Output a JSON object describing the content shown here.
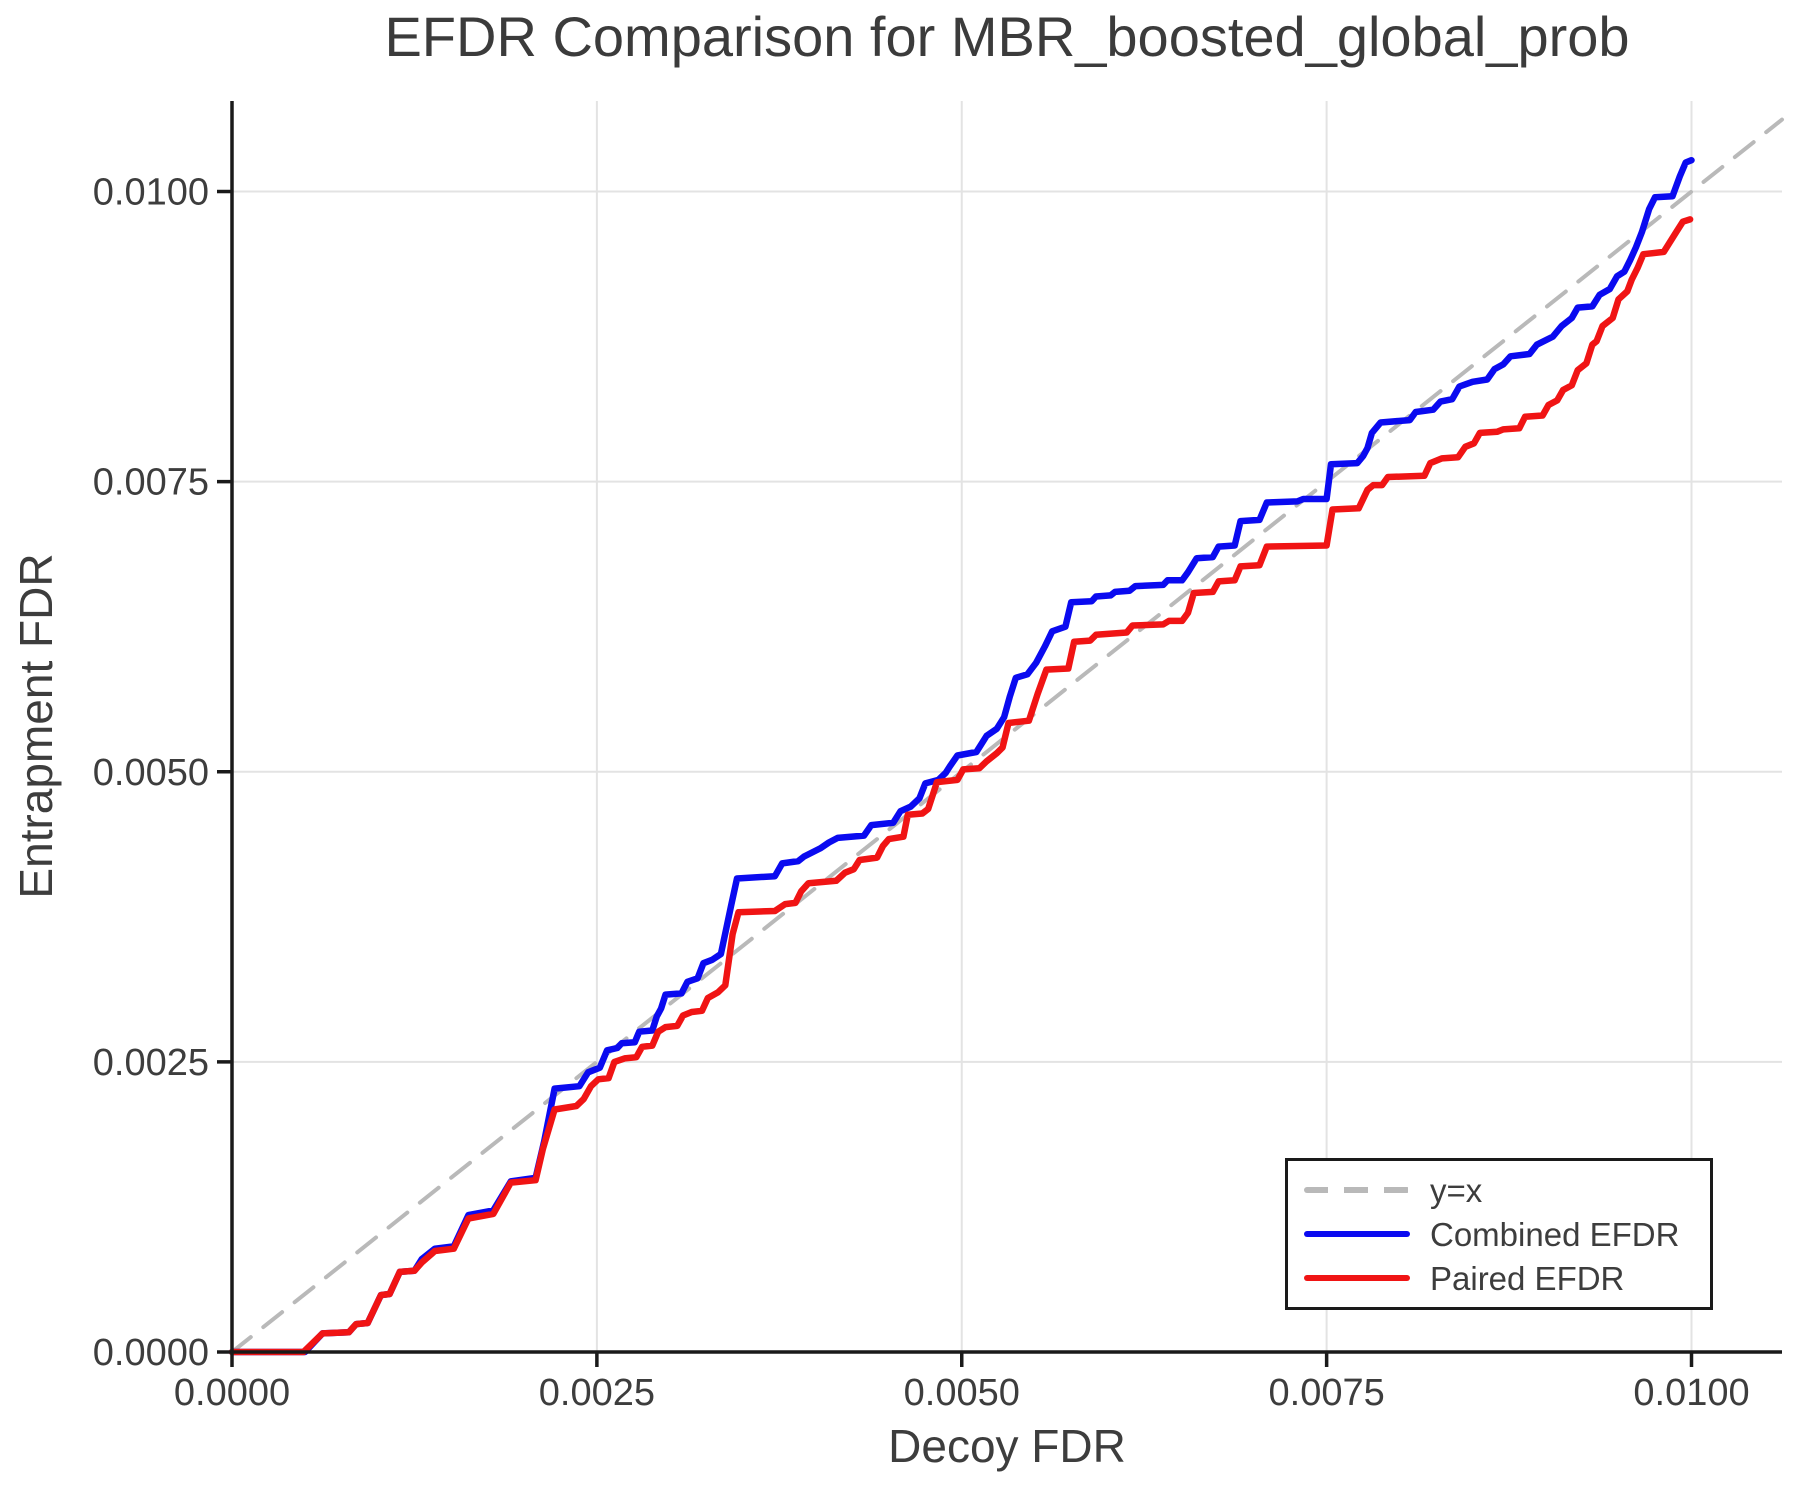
{
  "title": "EFDR Comparison for MBR_boosted_global_prob",
  "x_axis": {
    "label": "Decoy FDR",
    "tick_labels": [
      "0.0000",
      "0.0025",
      "0.0050",
      "0.0075",
      "0.0100"
    ],
    "tick_values": [
      0,
      0.0025,
      0.005,
      0.0075,
      0.01
    ],
    "range": [
      0,
      0.01062
    ]
  },
  "y_axis": {
    "label": "Entrapment FDR",
    "tick_labels": [
      "0.0000",
      "0.0025",
      "0.0050",
      "0.0075",
      "0.0100"
    ],
    "tick_values": [
      0,
      0.0025,
      0.005,
      0.0075,
      0.01
    ],
    "range": [
      0,
      0.01078
    ]
  },
  "legend": {
    "location": "lower right",
    "items": [
      {
        "label": "y=x",
        "color": "#b9b9b9",
        "dashed": true
      },
      {
        "label": "Combined EFDR",
        "color": "#0a0af0",
        "dashed": false
      },
      {
        "label": "Paired EFDR",
        "color": "#f01414",
        "dashed": false
      }
    ]
  },
  "colors": {
    "background": "#ffffff",
    "grid": "#e3e3e3",
    "spine": "#1a1a1a",
    "text": "#3d3d3d",
    "identity_line": "#b9b9b9",
    "combined_efdr": "#0a0af0",
    "paired_efdr": "#f01414"
  },
  "chart_data": {
    "type": "line",
    "title": "EFDR Comparison for MBR_boosted_global_prob",
    "xlabel": "Decoy FDR",
    "ylabel": "Entrapment FDR",
    "xlim": [
      0,
      0.01062
    ],
    "ylim": [
      0,
      0.01078
    ],
    "grid": true,
    "legend_position": "lower right",
    "series": [
      {
        "name": "y=x",
        "color": "#b9b9b9",
        "style": "dashed",
        "width": 4,
        "points": [
          [
            0,
            0
          ],
          [
            0.01062,
            0.01062
          ]
        ]
      },
      {
        "name": "Combined EFDR",
        "color": "#0a0af0",
        "style": "solid",
        "width": 6.5,
        "points": [
          [
            0,
            0
          ],
          [
            0.0005,
            0
          ],
          [
            0.00062,
            0.00016
          ],
          [
            0.0008,
            0.00017
          ],
          [
            0.00085,
            0.00024
          ],
          [
            0.00093,
            0.00025
          ],
          [
            0.00102,
            0.00049
          ],
          [
            0.00108,
            0.0005
          ],
          [
            0.00115,
            0.00069
          ],
          [
            0.00125,
            0.0007
          ],
          [
            0.0013,
            0.0008
          ],
          [
            0.00139,
            0.00089
          ],
          [
            0.00152,
            0.00091
          ],
          [
            0.00162,
            0.00118
          ],
          [
            0.00179,
            0.00122
          ],
          [
            0.00191,
            0.00147
          ],
          [
            0.00208,
            0.0015
          ],
          [
            0.00214,
            0.00182
          ],
          [
            0.00221,
            0.00227
          ],
          [
            0.00238,
            0.00229
          ],
          [
            0.00244,
            0.00241
          ],
          [
            0.00252,
            0.00245
          ],
          [
            0.00257,
            0.0026
          ],
          [
            0.00264,
            0.00262
          ],
          [
            0.00267,
            0.00266
          ],
          [
            0.00276,
            0.00267
          ],
          [
            0.00279,
            0.00276
          ],
          [
            0.00288,
            0.00277
          ],
          [
            0.00291,
            0.00289
          ],
          [
            0.00294,
            0.00296
          ],
          [
            0.00297,
            0.00308
          ],
          [
            0.00308,
            0.00309
          ],
          [
            0.00312,
            0.00319
          ],
          [
            0.00319,
            0.00322
          ],
          [
            0.00323,
            0.00335
          ],
          [
            0.00329,
            0.00338
          ],
          [
            0.00335,
            0.00343
          ],
          [
            0.00342,
            0.00385
          ],
          [
            0.00346,
            0.00408
          ],
          [
            0.00372,
            0.0041
          ],
          [
            0.00377,
            0.00421
          ],
          [
            0.00388,
            0.00423
          ],
          [
            0.00392,
            0.00427
          ],
          [
            0.00403,
            0.00434
          ],
          [
            0.00409,
            0.00439
          ],
          [
            0.00415,
            0.00443
          ],
          [
            0.00433,
            0.00445
          ],
          [
            0.00438,
            0.00454
          ],
          [
            0.00453,
            0.00456
          ],
          [
            0.00458,
            0.00466
          ],
          [
            0.00465,
            0.0047
          ],
          [
            0.00471,
            0.00477
          ],
          [
            0.00475,
            0.0049
          ],
          [
            0.00484,
            0.00493
          ],
          [
            0.00489,
            0.00499
          ],
          [
            0.00492,
            0.00505
          ],
          [
            0.00497,
            0.00514
          ],
          [
            0.0051,
            0.00517
          ],
          [
            0.00517,
            0.00531
          ],
          [
            0.00524,
            0.00537
          ],
          [
            0.00529,
            0.00547
          ],
          [
            0.00533,
            0.00565
          ],
          [
            0.00537,
            0.00581
          ],
          [
            0.00545,
            0.00584
          ],
          [
            0.00551,
            0.00594
          ],
          [
            0.00557,
            0.00608
          ],
          [
            0.00562,
            0.00621
          ],
          [
            0.00571,
            0.00625
          ],
          [
            0.00575,
            0.00646
          ],
          [
            0.00589,
            0.00647
          ],
          [
            0.00592,
            0.00651
          ],
          [
            0.00602,
            0.00652
          ],
          [
            0.00605,
            0.00655
          ],
          [
            0.00615,
            0.00656
          ],
          [
            0.00619,
            0.0066
          ],
          [
            0.00638,
            0.00661
          ],
          [
            0.00641,
            0.00665
          ],
          [
            0.00651,
            0.00665
          ],
          [
            0.00655,
            0.00672
          ],
          [
            0.00661,
            0.00684
          ],
          [
            0.00672,
            0.00685
          ],
          [
            0.00676,
            0.00694
          ],
          [
            0.00687,
            0.00695
          ],
          [
            0.00691,
            0.00716
          ],
          [
            0.00704,
            0.00717
          ],
          [
            0.00709,
            0.00732
          ],
          [
            0.0073,
            0.00733
          ],
          [
            0.00734,
            0.00735
          ],
          [
            0.0075,
            0.00735
          ],
          [
            0.00753,
            0.00765
          ],
          [
            0.00771,
            0.00766
          ],
          [
            0.00775,
            0.00772
          ],
          [
            0.00778,
            0.00779
          ],
          [
            0.00781,
            0.00792
          ],
          [
            0.00787,
            0.00801
          ],
          [
            0.00807,
            0.00803
          ],
          [
            0.00811,
            0.0081
          ],
          [
            0.00823,
            0.00812
          ],
          [
            0.00828,
            0.00819
          ],
          [
            0.00836,
            0.00821
          ],
          [
            0.00841,
            0.00832
          ],
          [
            0.0085,
            0.00836
          ],
          [
            0.0086,
            0.00838
          ],
          [
            0.00865,
            0.00847
          ],
          [
            0.00871,
            0.00851
          ],
          [
            0.00876,
            0.00858
          ],
          [
            0.00889,
            0.0086
          ],
          [
            0.00894,
            0.00868
          ],
          [
            0.00905,
            0.00875
          ],
          [
            0.00911,
            0.00884
          ],
          [
            0.00918,
            0.00891
          ],
          [
            0.00922,
            0.009
          ],
          [
            0.00932,
            0.00901
          ],
          [
            0.00937,
            0.00911
          ],
          [
            0.00944,
            0.00916
          ],
          [
            0.00949,
            0.00927
          ],
          [
            0.00954,
            0.00931
          ],
          [
            0.00958,
            0.00941
          ],
          [
            0.00962,
            0.00952
          ],
          [
            0.00966,
            0.00965
          ],
          [
            0.00971,
            0.00985
          ],
          [
            0.00975,
            0.00995
          ],
          [
            0.00987,
            0.00996
          ],
          [
            0.00992,
            0.01013
          ],
          [
            0.00996,
            0.01025
          ],
          [
            0.01,
            0.01027
          ]
        ]
      },
      {
        "name": "Paired EFDR",
        "color": "#f01414",
        "style": "solid",
        "width": 6.5,
        "points": [
          [
            0,
            0
          ],
          [
            0.00049,
            0
          ],
          [
            0.00062,
            0.00016
          ],
          [
            0.0008,
            0.00017
          ],
          [
            0.00085,
            0.00024
          ],
          [
            0.00093,
            0.00025
          ],
          [
            0.00102,
            0.00049
          ],
          [
            0.00108,
            0.0005
          ],
          [
            0.00115,
            0.00069
          ],
          [
            0.00125,
            0.0007
          ],
          [
            0.0013,
            0.00077
          ],
          [
            0.00139,
            0.00087
          ],
          [
            0.00152,
            0.00089
          ],
          [
            0.00162,
            0.00115
          ],
          [
            0.00179,
            0.00119
          ],
          [
            0.00191,
            0.00146
          ],
          [
            0.00208,
            0.00148
          ],
          [
            0.00213,
            0.00175
          ],
          [
            0.00221,
            0.00209
          ],
          [
            0.00236,
            0.00212
          ],
          [
            0.00241,
            0.00218
          ],
          [
            0.00246,
            0.00229
          ],
          [
            0.00251,
            0.00235
          ],
          [
            0.00258,
            0.00236
          ],
          [
            0.00262,
            0.0025
          ],
          [
            0.00269,
            0.00253
          ],
          [
            0.00277,
            0.00254
          ],
          [
            0.00281,
            0.00263
          ],
          [
            0.00288,
            0.00264
          ],
          [
            0.00292,
            0.00276
          ],
          [
            0.00297,
            0.0028
          ],
          [
            0.00305,
            0.00281
          ],
          [
            0.00309,
            0.0029
          ],
          [
            0.00315,
            0.00293
          ],
          [
            0.00322,
            0.00294
          ],
          [
            0.00326,
            0.00305
          ],
          [
            0.00333,
            0.0031
          ],
          [
            0.00338,
            0.00316
          ],
          [
            0.00343,
            0.0036
          ],
          [
            0.00347,
            0.00379
          ],
          [
            0.00372,
            0.0038
          ],
          [
            0.00379,
            0.00386
          ],
          [
            0.00386,
            0.00387
          ],
          [
            0.0039,
            0.00397
          ],
          [
            0.00395,
            0.00404
          ],
          [
            0.00414,
            0.00406
          ],
          [
            0.0042,
            0.00413
          ],
          [
            0.00426,
            0.00416
          ],
          [
            0.0043,
            0.00424
          ],
          [
            0.00442,
            0.00426
          ],
          [
            0.00446,
            0.00436
          ],
          [
            0.0045,
            0.00442
          ],
          [
            0.0046,
            0.00444
          ],
          [
            0.00463,
            0.00463
          ],
          [
            0.00473,
            0.00464
          ],
          [
            0.00477,
            0.00468
          ],
          [
            0.00483,
            0.00491
          ],
          [
            0.00497,
            0.00493
          ],
          [
            0.00501,
            0.00502
          ],
          [
            0.00512,
            0.00503
          ],
          [
            0.00517,
            0.00509
          ],
          [
            0.00524,
            0.00516
          ],
          [
            0.00528,
            0.00521
          ],
          [
            0.00532,
            0.00542
          ],
          [
            0.00546,
            0.00544
          ],
          [
            0.00552,
            0.00567
          ],
          [
            0.00558,
            0.00588
          ],
          [
            0.00573,
            0.00589
          ],
          [
            0.00577,
            0.00612
          ],
          [
            0.00588,
            0.00613
          ],
          [
            0.00592,
            0.00618
          ],
          [
            0.00613,
            0.0062
          ],
          [
            0.00617,
            0.00626
          ],
          [
            0.00638,
            0.00627
          ],
          [
            0.00642,
            0.0063
          ],
          [
            0.00651,
            0.0063
          ],
          [
            0.00655,
            0.00637
          ],
          [
            0.00659,
            0.00654
          ],
          [
            0.00672,
            0.00655
          ],
          [
            0.00676,
            0.00664
          ],
          [
            0.00687,
            0.00665
          ],
          [
            0.00691,
            0.00677
          ],
          [
            0.00704,
            0.00678
          ],
          [
            0.00709,
            0.00694
          ],
          [
            0.0075,
            0.00695
          ],
          [
            0.00754,
            0.00726
          ],
          [
            0.00772,
            0.00727
          ],
          [
            0.00778,
            0.00743
          ],
          [
            0.00782,
            0.00747
          ],
          [
            0.00788,
            0.00747
          ],
          [
            0.00792,
            0.00754
          ],
          [
            0.00817,
            0.00755
          ],
          [
            0.00821,
            0.00766
          ],
          [
            0.00829,
            0.0077
          ],
          [
            0.0084,
            0.00771
          ],
          [
            0.00845,
            0.0078
          ],
          [
            0.00851,
            0.00783
          ],
          [
            0.00855,
            0.00792
          ],
          [
            0.00867,
            0.00793
          ],
          [
            0.00871,
            0.00795
          ],
          [
            0.00882,
            0.00796
          ],
          [
            0.00886,
            0.00806
          ],
          [
            0.00898,
            0.00807
          ],
          [
            0.00902,
            0.00816
          ],
          [
            0.00908,
            0.0082
          ],
          [
            0.00912,
            0.00829
          ],
          [
            0.00918,
            0.00833
          ],
          [
            0.00922,
            0.00846
          ],
          [
            0.00928,
            0.00852
          ],
          [
            0.00932,
            0.00868
          ],
          [
            0.00935,
            0.00871
          ],
          [
            0.00939,
            0.00884
          ],
          [
            0.00946,
            0.00891
          ],
          [
            0.0095,
            0.00907
          ],
          [
            0.00956,
            0.00914
          ],
          [
            0.00959,
            0.00924
          ],
          [
            0.00963,
            0.00934
          ],
          [
            0.00967,
            0.00946
          ],
          [
            0.00981,
            0.00948
          ],
          [
            0.00985,
            0.00956
          ],
          [
            0.0099,
            0.00966
          ],
          [
            0.00994,
            0.00974
          ],
          [
            0.00999,
            0.00976
          ]
        ]
      }
    ]
  }
}
